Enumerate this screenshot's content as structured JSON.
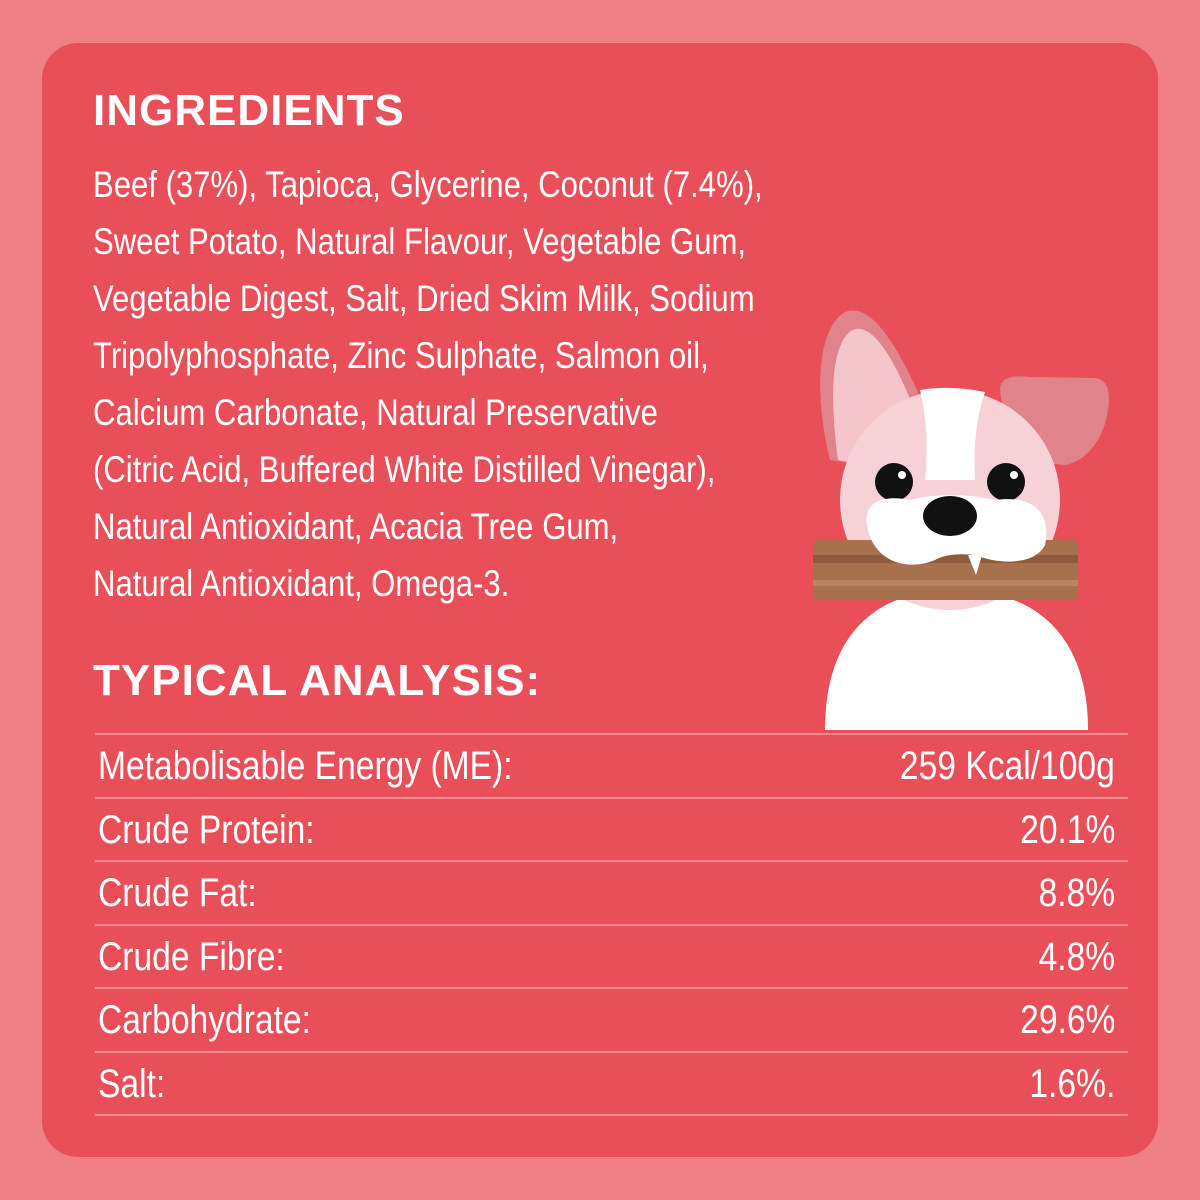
{
  "ingredients": {
    "heading": "INGREDIENTS",
    "lines": [
      "Beef (37%), Tapioca, Glycerine, Coconut (7.4%),",
      "Sweet Potato, Natural Flavour, Vegetable Gum,",
      "Vegetable Digest, Salt, Dried Skim Milk, Sodium",
      "Tripolyphosphate, Zinc Sulphate, Salmon oil,",
      "Calcium Carbonate, Natural Preservative",
      "(Citric Acid, Buffered White Distilled Vinegar),",
      "Natural Antioxidant, Acacia Tree Gum,",
      "Natural Antioxidant, Omega-3."
    ]
  },
  "analysis": {
    "heading": "TYPICAL ANALYSIS:",
    "rows": [
      {
        "label": "Metabolisable Energy (ME):",
        "value": "259 Kcal/100g"
      },
      {
        "label": "Crude Protein:",
        "value": "20.1%"
      },
      {
        "label": "Crude Fat:",
        "value": "8.8%"
      },
      {
        "label": "Crude Fibre:",
        "value": "4.8%"
      },
      {
        "label": "Carbohydrate:",
        "value": "29.6%"
      },
      {
        "label": "Salt:",
        "value": "1.6%."
      }
    ]
  },
  "colors": {
    "background": "#F07F86",
    "card": "#E84F58",
    "divider": "#F48A90",
    "text": "#FFFFFF"
  },
  "illustration": "dog-holding-treat-stick"
}
